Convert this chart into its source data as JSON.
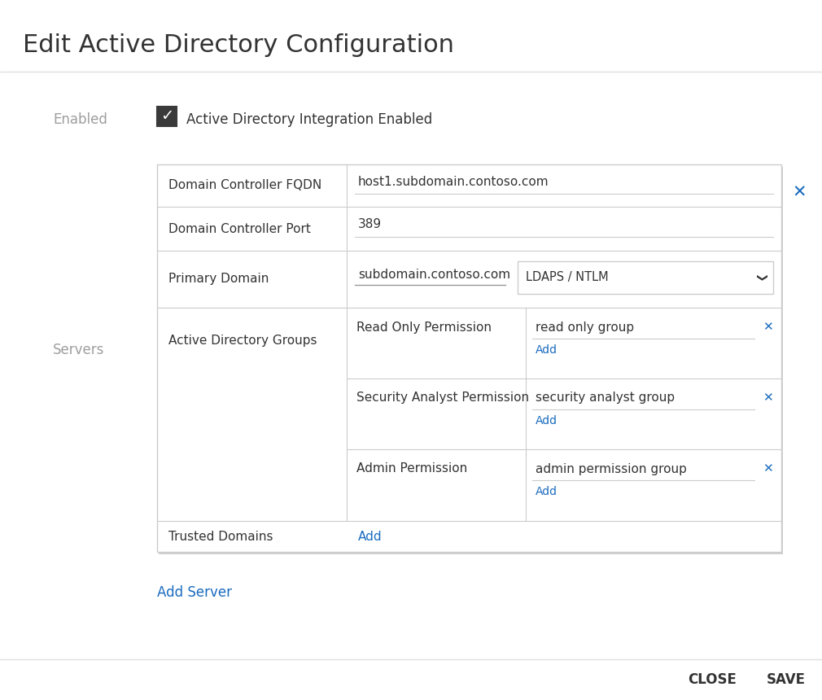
{
  "title": "Edit Active Directory Configuration",
  "title_fontsize": 22,
  "bg_color": "#ffffff",
  "text_color": "#333333",
  "label_color": "#9e9e9e",
  "blue_color": "#1a6bbf",
  "border_color": "#cccccc",
  "dark_border": "#999999",
  "enabled_label": "Enabled",
  "enabled_text": "Active Directory Integration Enabled",
  "servers_label": "Servers",
  "fqdn_label": "Domain Controller FQDN",
  "fqdn_value": "host1.subdomain.contoso.com",
  "port_label": "Domain Controller Port",
  "port_value": "389",
  "primary_domain_label": "Primary Domain",
  "primary_domain_value": "subdomain.contoso.com",
  "dropdown_value": "LDAPS / NTLM",
  "ad_groups_label": "Active Directory Groups",
  "groups": [
    {
      "label": "Read Only Permission",
      "value": "read only group"
    },
    {
      "label": "Security Analyst Permission",
      "value": "security analyst group"
    },
    {
      "label": "Admin Permission",
      "value": "admin permission group"
    }
  ],
  "trusted_domains_label": "Trusted Domains",
  "add_server_text": "Add Server",
  "close_text": "CLOSE",
  "save_text": "SAVE",
  "separator_color": "#e0e0e0",
  "card_shadow_color": "#d0d0d0"
}
